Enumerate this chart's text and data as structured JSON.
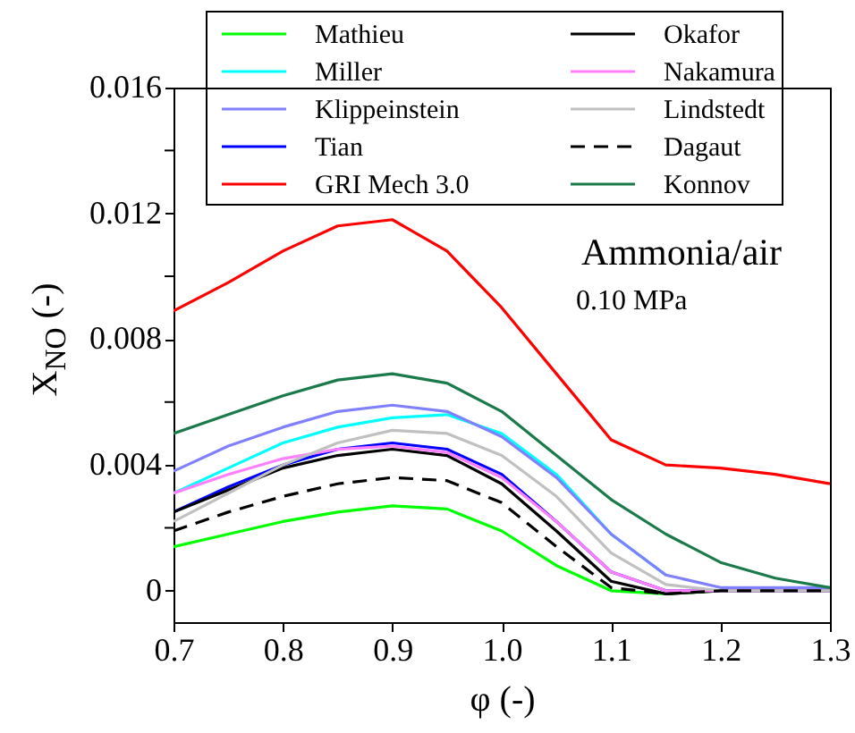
{
  "chart_data": {
    "type": "line",
    "xlabel": "φ (-)",
    "ylabel": "X$_{NO}$ (-)",
    "x": [
      0.7,
      0.75,
      0.8,
      0.85,
      0.9,
      0.95,
      1.0,
      1.05,
      1.1,
      1.15,
      1.2,
      1.25,
      1.3
    ],
    "xlim": [
      0.7,
      1.3
    ],
    "xticks": [
      0.7,
      0.8,
      0.9,
      {
        "value": 1.0,
        "label": "1.0"
      },
      1.1,
      1.2,
      1.3
    ],
    "ylim": [
      -0.001,
      0.016
    ],
    "yticks": [
      0,
      {
        "value": 0.002,
        "label": null
      },
      0.004,
      {
        "value": 0.006,
        "label": null
      },
      0.008,
      {
        "value": 0.01,
        "label": null
      },
      0.012,
      {
        "value": 0.014,
        "label": null
      },
      0.016
    ],
    "legend": "top",
    "grid": false,
    "line_style": "solid",
    "annotations": [
      "Ammonia/air",
      "0.10 MPa"
    ],
    "series": [
      {
        "name": "Mathieu",
        "color": "#00ff00",
        "values": [
          0.0014,
          0.0018,
          0.0022,
          0.0025,
          0.0027,
          0.0026,
          0.0019,
          0.0008,
          0.0,
          -0.0001,
          0.0,
          null,
          null
        ]
      },
      {
        "name": "Miller",
        "color": "#00ffff",
        "values": [
          0.0031,
          0.0039,
          0.0047,
          0.0052,
          0.0055,
          0.0056,
          0.005,
          0.0037,
          0.0018,
          0.0005,
          null,
          null,
          null
        ]
      },
      {
        "name": "Klippeinstein",
        "color": "#8080ff",
        "values": [
          0.0038,
          0.0046,
          0.0052,
          0.0057,
          0.0059,
          0.0057,
          0.0049,
          0.0036,
          0.0018,
          0.0005,
          0.0001,
          0.0001,
          0.0001
        ]
      },
      {
        "name": "Tian",
        "color": "#0000ff",
        "values": [
          0.0025,
          0.0033,
          0.004,
          0.0045,
          0.0047,
          0.0045,
          0.0037,
          0.0022,
          0.0006,
          0.0,
          0.0,
          0.0,
          0.0
        ]
      },
      {
        "name": "GRI Mech 3.0",
        "color": "#ff0000",
        "values": [
          0.0089,
          0.0098,
          0.0108,
          0.0116,
          0.0118,
          0.0108,
          0.009,
          0.0069,
          0.0048,
          0.004,
          0.0039,
          0.0037,
          0.0034
        ]
      },
      {
        "name": "Okafor",
        "color": "#000000",
        "values": [
          0.0025,
          0.0032,
          0.0039,
          0.0043,
          0.0045,
          0.0043,
          0.0034,
          0.0019,
          0.0003,
          -0.0001,
          0.0,
          0.0,
          0.0
        ]
      },
      {
        "name": "Nakamura",
        "color": "#ff80ff",
        "values": [
          0.0031,
          0.0037,
          0.0042,
          0.0045,
          0.0046,
          0.0044,
          0.0036,
          0.0022,
          0.0006,
          0.0,
          0.0,
          0.0,
          0.0
        ]
      },
      {
        "name": "Lindstedt",
        "color": "#c0c0c0",
        "values": [
          0.0022,
          0.0031,
          0.004,
          0.0047,
          0.0051,
          0.005,
          0.0043,
          0.003,
          0.0012,
          0.0002,
          0.0,
          0.0,
          0.0
        ]
      },
      {
        "name": "Dagaut",
        "color": "#000000",
        "line_style": "dashed",
        "values": [
          0.0019,
          0.0025,
          0.003,
          0.0034,
          0.0036,
          0.0035,
          0.0028,
          0.0014,
          0.0001,
          -0.0001,
          0.0,
          0.0,
          0.0
        ]
      },
      {
        "name": "Konnov",
        "color": "#1a7a4a",
        "values": [
          0.005,
          0.0056,
          0.0062,
          0.0067,
          0.0069,
          0.0066,
          0.0057,
          0.0043,
          0.0029,
          0.0018,
          0.0009,
          0.0004,
          0.0001
        ]
      }
    ]
  }
}
